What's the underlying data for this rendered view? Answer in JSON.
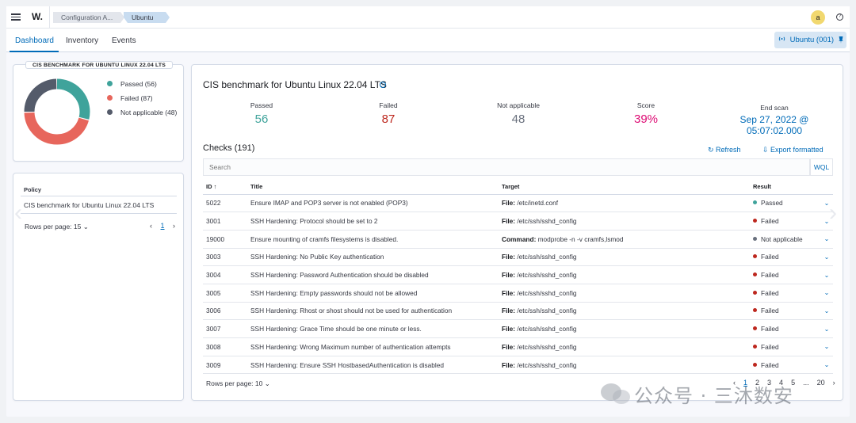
{
  "header": {
    "logo": "W.",
    "breadcrumbs": [
      "Configuration A...",
      "Ubuntu"
    ],
    "avatar_initial": "a",
    "help_glyph": "?"
  },
  "tabs": [
    {
      "label": "Dashboard",
      "active": true
    },
    {
      "label": "Inventory",
      "active": false
    },
    {
      "label": "Events",
      "active": false
    }
  ],
  "agent_button": {
    "label": "Ubuntu (001)"
  },
  "chart_panel": {
    "title": "CIS BENCHMARK FOR UBUNTU LINUX 22.04 LTS",
    "legend": [
      {
        "label": "Passed (56)",
        "color": "#3fa39b"
      },
      {
        "label": "Failed (87)",
        "color": "#e7665c"
      },
      {
        "label": "Not applicable (48)",
        "color": "#545b6a"
      }
    ]
  },
  "chart_data": {
    "type": "pie",
    "donut": true,
    "labels": [
      "Passed",
      "Failed",
      "Not applicable"
    ],
    "values": [
      56,
      87,
      48
    ],
    "colors": [
      "#3fa39b",
      "#e7665c",
      "#545b6a"
    ]
  },
  "policy_panel": {
    "header": "Policy",
    "row": "CIS benchmark for Ubuntu Linux 22.04 LTS",
    "rows_per_page": "Rows per page: 15",
    "page": "1"
  },
  "main": {
    "title": "CIS benchmark for Ubuntu Linux 22.04 LTS",
    "info_glyph": "i",
    "stats": [
      {
        "label": "Passed",
        "value": "56",
        "color": "#3fa39b"
      },
      {
        "label": "Failed",
        "value": "87",
        "color": "#bd271e"
      },
      {
        "label": "Not applicable",
        "value": "48",
        "color": "#69707d"
      },
      {
        "label": "Score",
        "value": "39%",
        "color": "#dd0a73"
      },
      {
        "label": "End scan",
        "value": "Sep 27, 2022 @ 05:07:02.000",
        "color": "#006bb8"
      }
    ],
    "checks_title": "Checks (191)",
    "refresh_label": "Refresh",
    "export_label": "Export formatted",
    "search_placeholder": "Search",
    "wql_label": "WQL",
    "columns": [
      "ID ↑",
      "Title",
      "Target",
      "Result"
    ],
    "rows": [
      {
        "id": "5022",
        "title": "Ensure IMAP and POP3 server is not enabled (POP3)",
        "target_key": "File:",
        "target_val": " /etc/inetd.conf",
        "result": "Passed",
        "color": "#3fa39b"
      },
      {
        "id": "3001",
        "title": "SSH Hardening: Protocol should be set to 2",
        "target_key": "File:",
        "target_val": " /etc/ssh/sshd_config",
        "result": "Failed",
        "color": "#bd271e"
      },
      {
        "id": "19000",
        "title": "Ensure mounting of cramfs filesystems is disabled.",
        "target_key": "Command:",
        "target_val": " modprobe -n -v cramfs,lsmod",
        "result": "Not applicable",
        "color": "#69707d"
      },
      {
        "id": "3003",
        "title": "SSH Hardening: No Public Key authentication",
        "target_key": "File:",
        "target_val": " /etc/ssh/sshd_config",
        "result": "Failed",
        "color": "#bd271e"
      },
      {
        "id": "3004",
        "title": "SSH Hardening: Password Authentication should be disabled",
        "target_key": "File:",
        "target_val": " /etc/ssh/sshd_config",
        "result": "Failed",
        "color": "#bd271e"
      },
      {
        "id": "3005",
        "title": "SSH Hardening: Empty passwords should not be allowed",
        "target_key": "File:",
        "target_val": " /etc/ssh/sshd_config",
        "result": "Failed",
        "color": "#bd271e"
      },
      {
        "id": "3006",
        "title": "SSH Hardening: Rhost or shost should not be used for authentication",
        "target_key": "File:",
        "target_val": " /etc/ssh/sshd_config",
        "result": "Failed",
        "color": "#bd271e"
      },
      {
        "id": "3007",
        "title": "SSH Hardening: Grace Time should be one minute or less.",
        "target_key": "File:",
        "target_val": " /etc/ssh/sshd_config",
        "result": "Failed",
        "color": "#bd271e"
      },
      {
        "id": "3008",
        "title": "SSH Hardening: Wrong Maximum number of authentication attempts",
        "target_key": "File:",
        "target_val": " /etc/ssh/sshd_config",
        "result": "Failed",
        "color": "#bd271e"
      },
      {
        "id": "3009",
        "title": "SSH Hardening: Ensure SSH HostbasedAuthentication is disabled",
        "target_key": "File:",
        "target_val": " /etc/ssh/sshd_config",
        "result": "Failed",
        "color": "#bd271e"
      }
    ],
    "rows_per_page": "Rows per page: 10",
    "pages": [
      "1",
      "2",
      "3",
      "4",
      "5",
      "...",
      "20"
    ]
  },
  "watermark": "公众号 · 三沐数安"
}
